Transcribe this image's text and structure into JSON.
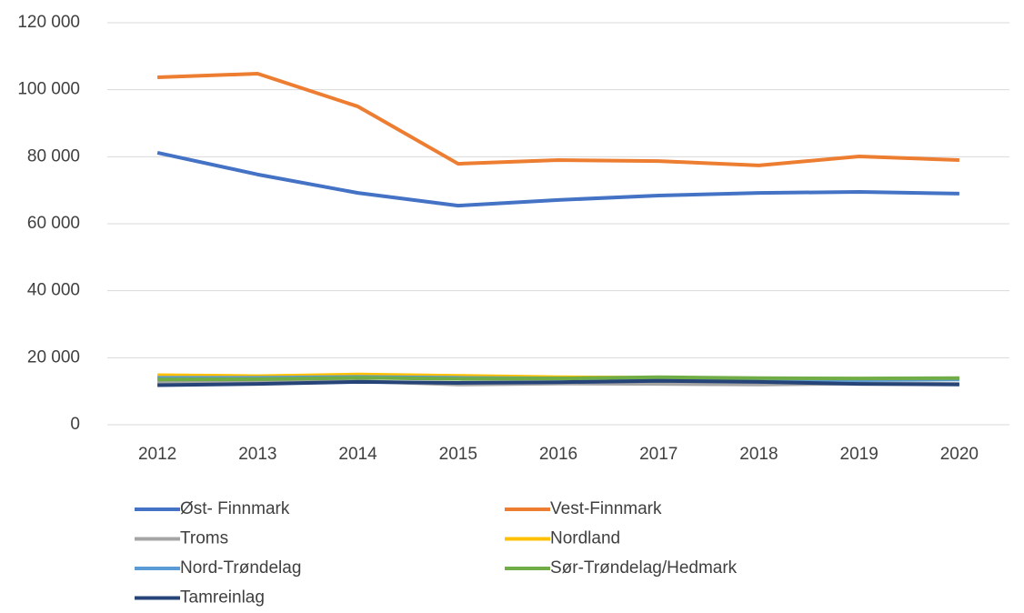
{
  "chart_data": {
    "type": "line",
    "categories": [
      "2012",
      "2013",
      "2014",
      "2015",
      "2016",
      "2017",
      "2018",
      "2019",
      "2020"
    ],
    "series": [
      {
        "name": "Øst- Finnmark",
        "color": "#4472c4",
        "values": [
          81200,
          74700,
          69200,
          65400,
          67100,
          68400,
          69200,
          69500,
          69000
        ]
      },
      {
        "name": "Vest-Finnmark",
        "color": "#ed7d31",
        "values": [
          103700,
          104800,
          95000,
          77900,
          79000,
          78700,
          77400,
          80100,
          79000
        ]
      },
      {
        "name": "Troms",
        "color": "#a5a5a5",
        "values": [
          12500,
          12800,
          13000,
          12000,
          12300,
          12200,
          12000,
          12300,
          12200
        ]
      },
      {
        "name": "Nordland",
        "color": "#ffc000",
        "values": [
          14800,
          14500,
          15000,
          14600,
          14200,
          14000,
          13800,
          13700,
          13800
        ]
      },
      {
        "name": "Nord-Trøndelag",
        "color": "#5b9bd5",
        "values": [
          14000,
          14000,
          14300,
          14000,
          13800,
          14000,
          13500,
          13300,
          13500
        ]
      },
      {
        "name": "Sør-Trøndelag/Hedmark",
        "color": "#70ad47",
        "values": [
          13500,
          13600,
          14000,
          13700,
          13800,
          14200,
          13900,
          13800,
          13900
        ]
      },
      {
        "name": "Tamreinlag",
        "color": "#264478",
        "values": [
          11800,
          12200,
          12800,
          12500,
          12700,
          13100,
          12800,
          12200,
          12000
        ]
      }
    ],
    "ylim": [
      0,
      120000
    ],
    "yticks": [
      0,
      {
        "value": 20000,
        "label": "20 000"
      },
      {
        "value": 40000,
        "label": "40 000"
      },
      {
        "value": 60000,
        "label": "60 000"
      },
      {
        "value": 80000,
        "label": "80 000"
      },
      {
        "value": 100000,
        "label": "100 000"
      },
      {
        "value": 120000,
        "label": "120 000"
      }
    ],
    "grid": true
  }
}
